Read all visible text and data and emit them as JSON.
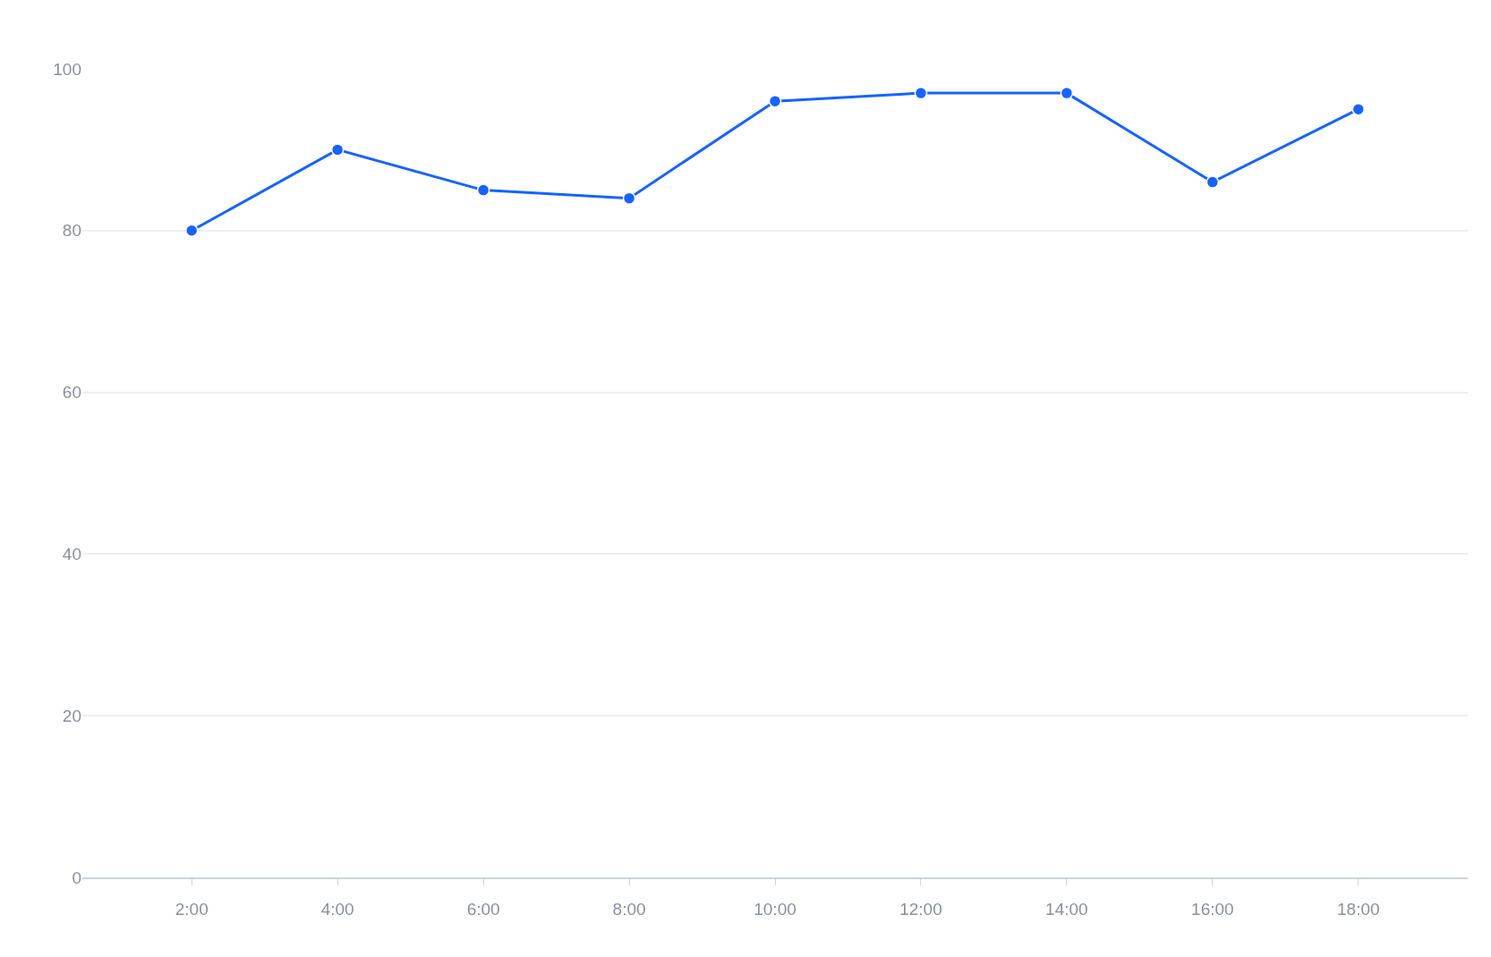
{
  "chart_data": {
    "type": "line",
    "categories": [
      "2:00",
      "4:00",
      "6:00",
      "8:00",
      "10:00",
      "12:00",
      "14:00",
      "16:00",
      "18:00"
    ],
    "series": [
      {
        "color": "#1763ff",
        "values": [
          80,
          90,
          85,
          84,
          96,
          97,
          97,
          86,
          95
        ]
      }
    ],
    "ylim": [
      0,
      100
    ],
    "yticks": [
      0,
      20,
      40,
      60,
      80,
      100
    ],
    "grid": "y",
    "marker": "circle",
    "line_style": "solid"
  }
}
